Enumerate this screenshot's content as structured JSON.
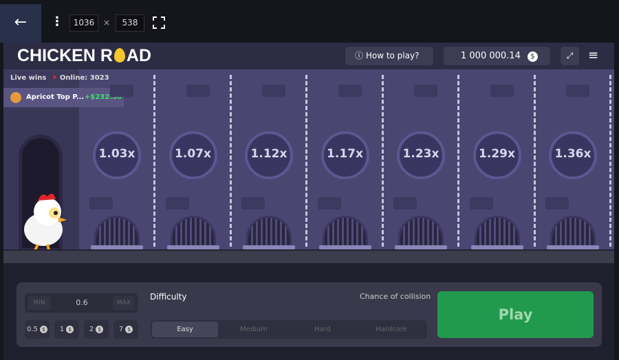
{
  "toolbar": {
    "width": "1036",
    "times": "×",
    "height": "538"
  },
  "header": {
    "logo_left": "CHICKEN R",
    "logo_right": "AD",
    "how_to_play": "How to play?",
    "balance": "1 000 000.14",
    "currency": "$"
  },
  "live": {
    "title": "Live wins",
    "online": "Online: 3023",
    "player": "Apricot Top P...",
    "win": "+$232.50"
  },
  "lanes": [
    "1.03x",
    "1.07x",
    "1.12x",
    "1.17x",
    "1.23x",
    "1.29x",
    "1.36x"
  ],
  "bet": {
    "min": "MIN",
    "value": "0.6",
    "max": "MAX",
    "chips": [
      "0.5",
      "1",
      "2",
      "7"
    ]
  },
  "difficulty": {
    "label": "Difficulty",
    "chance": "Chance of collision",
    "options": [
      "Easy",
      "Medium",
      "Hard",
      "Hardcore"
    ]
  },
  "play": "Play"
}
